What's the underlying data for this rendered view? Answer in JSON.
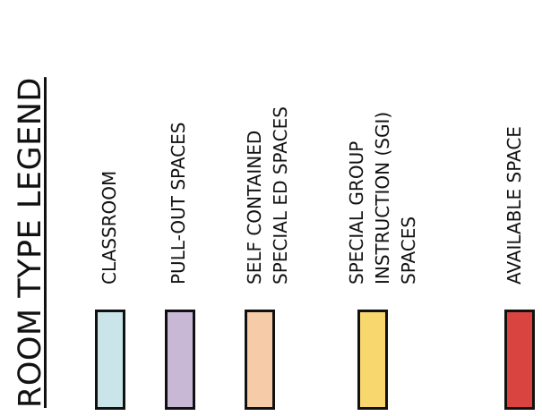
{
  "legend": {
    "title": "ROOM TYPE LEGEND",
    "items": [
      {
        "lines": [
          "CLASSROOM"
        ],
        "color": "#c9e5ea"
      },
      {
        "lines": [
          "PULL-OUT SPACES"
        ],
        "color": "#c8b8d6"
      },
      {
        "lines": [
          "SELF CONTAINED",
          "SPECIAL ED SPACES"
        ],
        "color": "#f6cca8"
      },
      {
        "lines": [
          "SPECIAL GROUP",
          "INSTRUCTION (SGI)",
          "SPACES"
        ],
        "color": "#f8d76e"
      },
      {
        "lines": [
          "AVAILABLE SPACE"
        ],
        "color": "#d94440"
      }
    ]
  }
}
